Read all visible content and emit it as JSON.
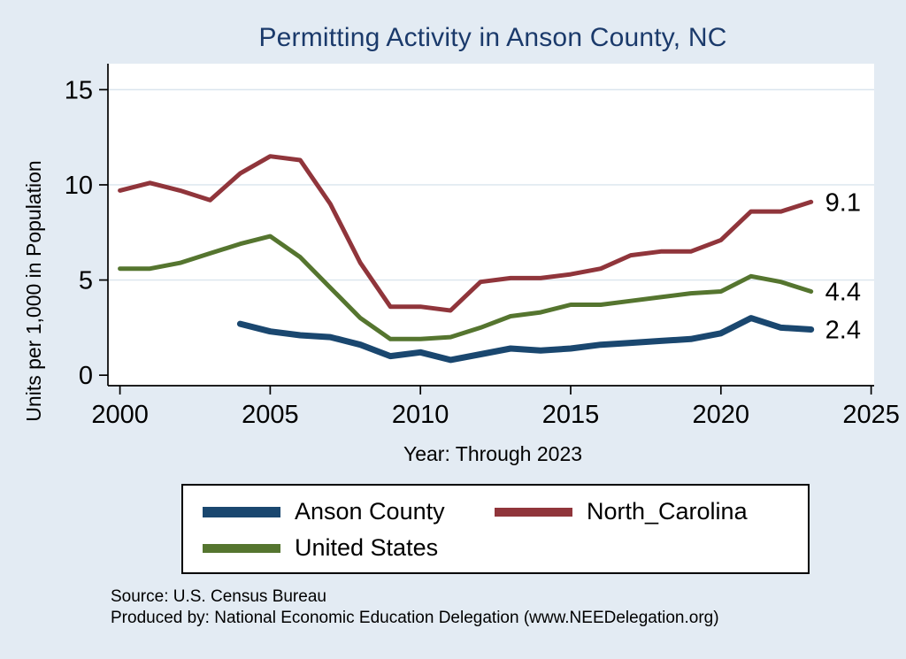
{
  "title": "Permitting Activity in Anson County, NC",
  "chart_data": {
    "type": "line",
    "x": [
      2000,
      2001,
      2002,
      2003,
      2004,
      2005,
      2006,
      2007,
      2008,
      2009,
      2010,
      2011,
      2012,
      2013,
      2014,
      2015,
      2016,
      2017,
      2018,
      2019,
      2020,
      2021,
      2022,
      2023
    ],
    "series": [
      {
        "name": "Anson County",
        "color": "#1a476f",
        "width": 7,
        "end_label": "2.4",
        "values": [
          null,
          null,
          null,
          null,
          2.7,
          2.3,
          2.1,
          2.0,
          1.6,
          1.0,
          1.2,
          0.8,
          1.1,
          1.4,
          1.3,
          1.4,
          1.6,
          1.7,
          1.8,
          1.9,
          2.2,
          3.0,
          2.5,
          2.4
        ]
      },
      {
        "name": "North_Carolina",
        "color": "#90353b",
        "width": 5,
        "end_label": "9.1",
        "values": [
          9.7,
          10.1,
          9.7,
          9.2,
          10.6,
          11.5,
          11.3,
          9.0,
          5.9,
          3.6,
          3.6,
          3.4,
          4.9,
          5.1,
          5.1,
          5.3,
          5.6,
          6.3,
          6.5,
          6.5,
          7.1,
          8.6,
          8.6,
          9.1
        ]
      },
      {
        "name": "United States",
        "color": "#55752f",
        "width": 5,
        "end_label": "4.4",
        "values": [
          5.6,
          5.6,
          5.9,
          6.4,
          6.9,
          7.3,
          6.2,
          4.6,
          3.0,
          1.9,
          1.9,
          2.0,
          2.5,
          3.1,
          3.3,
          3.7,
          3.7,
          3.9,
          4.1,
          4.3,
          4.4,
          5.2,
          4.9,
          4.4
        ]
      }
    ],
    "title": "Permitting Activity in Anson County, NC",
    "xlabel": "Year: Through 2023",
    "ylabel": "Units per 1,000 in Population",
    "xticks": [
      2000,
      2005,
      2010,
      2015,
      2020,
      2025
    ],
    "yticks": [
      0,
      5,
      10,
      15
    ],
    "xlim": [
      2000,
      2025
    ],
    "ylim": [
      0,
      15
    ],
    "grid": true,
    "legend_position": "bottom"
  },
  "notes": {
    "source": "Source: U.S. Census Bureau",
    "produced": "Produced by: National Economic Education Delegation (www.NEEDelegation.org)"
  }
}
